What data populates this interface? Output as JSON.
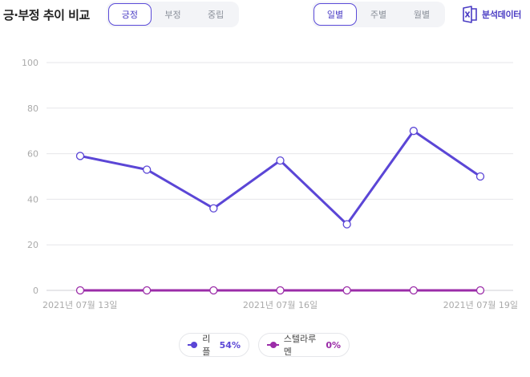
{
  "header": {
    "title": "긍·부정 추이 비교",
    "sentiment_tabs": [
      {
        "label": "긍정",
        "active": true
      },
      {
        "label": "부정",
        "active": false
      },
      {
        "label": "중립",
        "active": false
      }
    ],
    "period_tabs": [
      {
        "label": "일별",
        "active": true
      },
      {
        "label": "주별",
        "active": false
      },
      {
        "label": "월별",
        "active": false
      }
    ],
    "export_label": "분석데이터",
    "export_icon": "excel-icon"
  },
  "legend": [
    {
      "name": "리플",
      "pct": "54%",
      "color": "#5b46d6"
    },
    {
      "name": "스텔라루멘",
      "pct": "0%",
      "color": "#9b2ca8"
    }
  ],
  "chart_data": {
    "type": "line",
    "x": [
      "2021-07-13",
      "2021-07-14",
      "2021-07-15",
      "2021-07-16",
      "2021-07-17",
      "2021-07-18",
      "2021-07-19"
    ],
    "x_tick_labels": [
      "2021년 07월 13일",
      "2021년 07월 16일",
      "2021년 07월 19일"
    ],
    "x_tick_indices": [
      0,
      3,
      6
    ],
    "y_ticks": [
      0,
      20,
      40,
      60,
      80,
      100
    ],
    "ylim": [
      0,
      100
    ],
    "grid": true,
    "legend_position": "bottom",
    "series": [
      {
        "name": "리플",
        "color": "#5b46d6",
        "values": [
          59,
          53,
          36,
          57,
          29,
          70,
          50
        ]
      },
      {
        "name": "스텔라루멘",
        "color": "#9b2ca8",
        "values": [
          0,
          0,
          0,
          0,
          0,
          0,
          0
        ]
      }
    ]
  }
}
